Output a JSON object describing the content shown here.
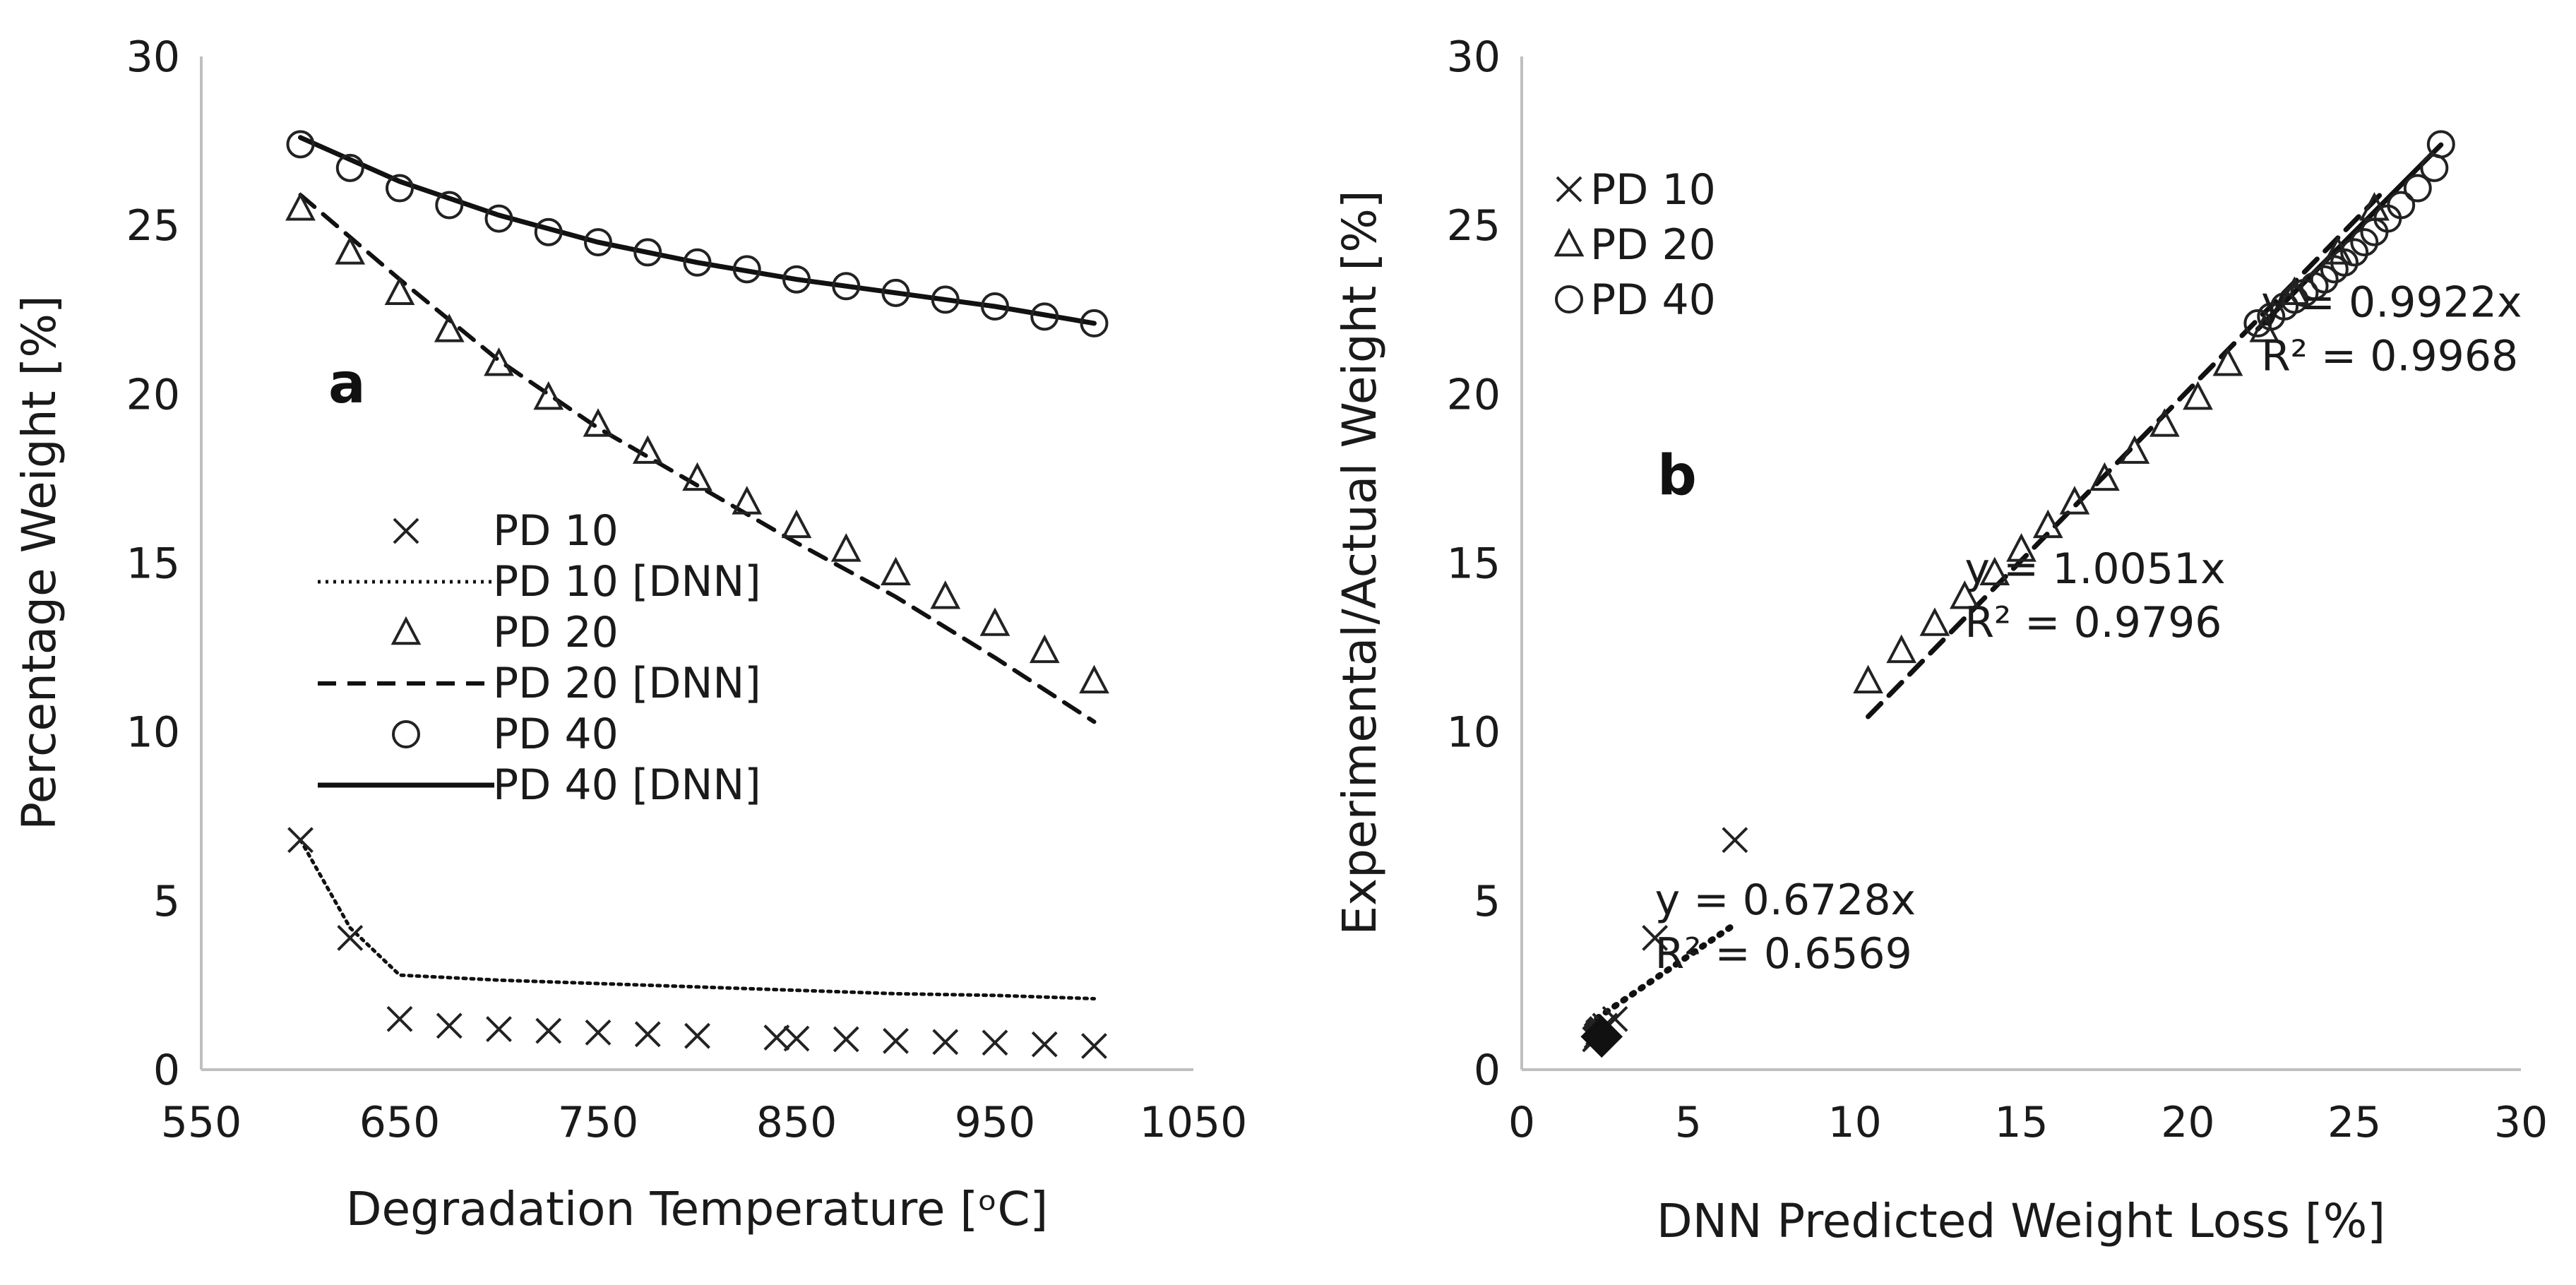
{
  "chart_data": [
    {
      "panel": "a",
      "type": "line",
      "xlabel": "Degradation Temperature [ᵒC]",
      "ylabel": "Percentage Weight [%]",
      "xlim": [
        550,
        1050
      ],
      "ylim": [
        0,
        30
      ],
      "xticks": [
        "550",
        "650",
        "750",
        "850",
        "950",
        "1050"
      ],
      "yticks": [
        "0",
        "5",
        "10",
        "15",
        "20",
        "25",
        "30"
      ],
      "legend_position": "center-left",
      "series": [
        {
          "name": "PD 10",
          "marker": "x",
          "x": [
            600,
            625,
            650,
            675,
            700,
            725,
            750,
            775,
            800,
            840,
            850,
            875,
            900,
            925,
            950,
            975,
            1000
          ],
          "y": [
            6.8,
            3.9,
            1.5,
            1.3,
            1.2,
            1.15,
            1.1,
            1.05,
            1.0,
            0.95,
            0.92,
            0.9,
            0.85,
            0.82,
            0.8,
            0.75,
            0.7
          ]
        },
        {
          "name": "PD 10 [DNN]",
          "line": "dotted",
          "x": [
            600,
            625,
            650,
            700,
            750,
            800,
            850,
            900,
            950,
            1000
          ],
          "y": [
            6.8,
            4.2,
            2.8,
            2.65,
            2.55,
            2.45,
            2.35,
            2.25,
            2.2,
            2.1
          ]
        },
        {
          "name": "PD 20",
          "marker": "triangle",
          "x": [
            600,
            625,
            650,
            675,
            700,
            725,
            750,
            775,
            800,
            825,
            850,
            875,
            900,
            925,
            950,
            975,
            1000
          ],
          "y": [
            25.5,
            24.2,
            23.0,
            21.9,
            20.9,
            19.9,
            19.1,
            18.3,
            17.5,
            16.8,
            16.1,
            15.4,
            14.7,
            14.0,
            13.2,
            12.4,
            11.5
          ]
        },
        {
          "name": "PD 20 [DNN]",
          "line": "dashed",
          "x": [
            600,
            650,
            700,
            750,
            800,
            850,
            900,
            950,
            1000
          ],
          "y": [
            25.9,
            23.4,
            21.0,
            19.0,
            17.3,
            15.6,
            14.0,
            12.2,
            10.3
          ]
        },
        {
          "name": "PD 40",
          "marker": "circle",
          "x": [
            600,
            625,
            650,
            675,
            700,
            725,
            750,
            775,
            800,
            825,
            850,
            875,
            900,
            925,
            950,
            975,
            1000
          ],
          "y": [
            27.4,
            26.7,
            26.1,
            25.6,
            25.2,
            24.8,
            24.5,
            24.2,
            23.9,
            23.7,
            23.4,
            23.2,
            23.0,
            22.8,
            22.6,
            22.3,
            22.1
          ]
        },
        {
          "name": "PD 40 [DNN]",
          "line": "solid",
          "x": [
            600,
            650,
            700,
            750,
            800,
            850,
            900,
            950,
            1000
          ],
          "y": [
            27.6,
            26.3,
            25.3,
            24.5,
            23.9,
            23.4,
            23.0,
            22.6,
            22.1
          ]
        }
      ]
    },
    {
      "panel": "b",
      "type": "scatter",
      "xlabel": "DNN Predicted Weight Loss [%]",
      "ylabel": "Experimental/Actual Weight [%]",
      "xlim": [
        0,
        30
      ],
      "ylim": [
        0,
        30
      ],
      "xticks": [
        "0",
        "5",
        "10",
        "15",
        "20",
        "25",
        "30"
      ],
      "yticks": [
        "0",
        "5",
        "10",
        "15",
        "20",
        "25",
        "30"
      ],
      "legend_position": "top-left",
      "series": [
        {
          "name": "PD 10",
          "marker": "x",
          "x": [
            6.4,
            4.0,
            2.8,
            2.5,
            2.4,
            2.35,
            2.3,
            2.3,
            2.25,
            2.25,
            2.2
          ],
          "y": [
            6.8,
            3.9,
            1.5,
            1.3,
            1.2,
            1.15,
            1.1,
            1.05,
            1.0,
            0.95,
            0.9
          ]
        },
        {
          "name": "PD 20",
          "marker": "triangle",
          "x": [
            10.4,
            11.4,
            12.4,
            13.3,
            14.2,
            15.0,
            15.8,
            16.6,
            17.5,
            18.4,
            19.3,
            20.3,
            21.2,
            22.3,
            23.2,
            24.5,
            25.6
          ],
          "y": [
            11.5,
            12.4,
            13.2,
            14.0,
            14.7,
            15.4,
            16.1,
            16.8,
            17.5,
            18.3,
            19.1,
            19.9,
            20.9,
            21.9,
            23.0,
            24.2,
            25.5
          ]
        },
        {
          "name": "PD 40",
          "marker": "circle",
          "x": [
            22.1,
            22.5,
            22.9,
            23.2,
            23.5,
            23.8,
            24.1,
            24.4,
            24.7,
            25.0,
            25.3,
            25.6,
            26.0,
            26.4,
            26.9,
            27.4,
            27.6
          ],
          "y": [
            22.1,
            22.3,
            22.6,
            22.8,
            23.0,
            23.2,
            23.4,
            23.7,
            23.9,
            24.2,
            24.5,
            24.8,
            25.2,
            25.6,
            26.1,
            26.7,
            27.4
          ]
        }
      ],
      "trendlines": [
        {
          "series": "PD 10",
          "style": "dotted",
          "x": [
            2.0,
            6.3
          ],
          "equation": "y = 0.6728x",
          "r2": "R² = 0.6569"
        },
        {
          "series": "PD 20",
          "style": "dashed",
          "x": [
            10.4,
            25.9
          ],
          "equation": "y = 1.0051x",
          "r2": "R² = 0.9796"
        },
        {
          "series": "PD 40",
          "style": "solid",
          "x": [
            22.1,
            27.6
          ],
          "equation": "y = 0.9922x",
          "r2": "R² = 0.9968"
        }
      ],
      "annotations": [
        {
          "text": "◆",
          "x": 2.4,
          "y": 1.1
        }
      ]
    }
  ]
}
